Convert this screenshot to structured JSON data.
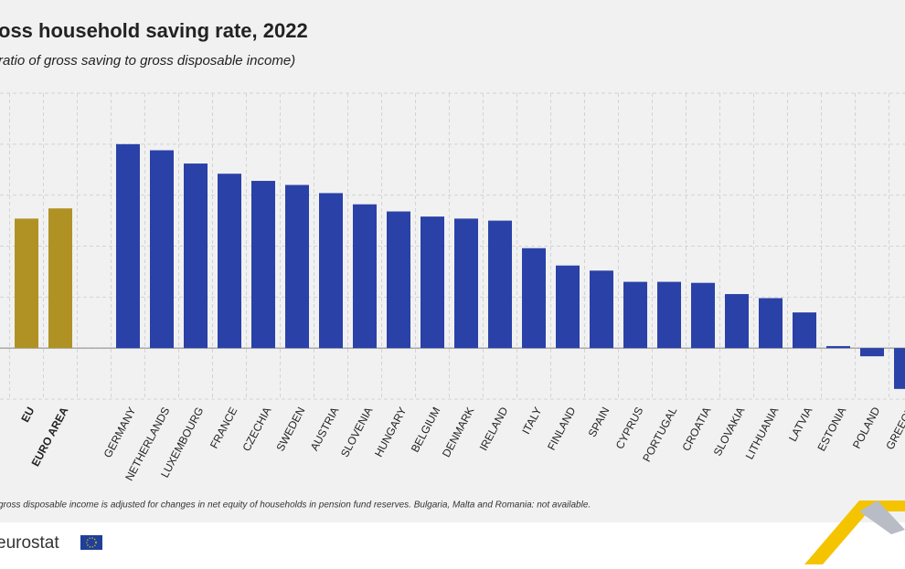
{
  "chart_data": {
    "type": "bar",
    "title": "oss household saving rate, 2022",
    "subtitle": "ratio of gross saving to gross disposable income)",
    "categories": [
      "EU",
      "EURO AREA",
      "GERMANY",
      "NETHERLANDS",
      "LUXEMBOURG",
      "FRANCE",
      "CZECHIA",
      "SWEDEN",
      "AUSTRIA",
      "SLOVENIA",
      "HUNGARY",
      "BELGIUM",
      "DENMARK",
      "IRELAND",
      "ITALY",
      "FINLAND",
      "SPAIN",
      "CYPRUS",
      "PORTUGAL",
      "CROATIA",
      "SLOVAKIA",
      "LITHUANIA",
      "LATVIA",
      "ESTONIA",
      "POLAND",
      "GREECE"
    ],
    "values": [
      12.7,
      13.7,
      20.0,
      19.4,
      18.1,
      17.1,
      16.4,
      16.0,
      15.2,
      14.1,
      13.4,
      12.9,
      12.7,
      12.5,
      9.8,
      8.1,
      7.6,
      6.5,
      6.5,
      6.4,
      5.3,
      4.9,
      3.5,
      0.2,
      -0.8,
      -4.0
    ],
    "colors": [
      "#b09224",
      "#b09224",
      "#2a41a8",
      "#2a41a8",
      "#2a41a8",
      "#2a41a8",
      "#2a41a8",
      "#2a41a8",
      "#2a41a8",
      "#2a41a8",
      "#2a41a8",
      "#2a41a8",
      "#2a41a8",
      "#2a41a8",
      "#2a41a8",
      "#2a41a8",
      "#2a41a8",
      "#2a41a8",
      "#2a41a8",
      "#2a41a8",
      "#2a41a8",
      "#2a41a8",
      "#2a41a8",
      "#2a41a8",
      "#2a41a8",
      "#2a41a8"
    ],
    "ylim": [
      -5,
      25
    ],
    "yticks": [
      -5,
      0,
      5,
      10,
      15,
      20,
      25
    ],
    "grid": true,
    "footnote": "gross disposable income is adjusted for changes in net equity of households in pension fund reserves. Bulgaria, Malta and Romania: not available.",
    "source": "eurostat"
  }
}
